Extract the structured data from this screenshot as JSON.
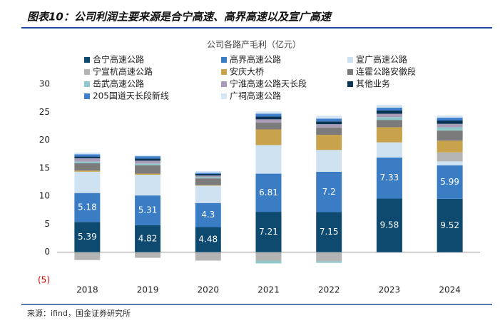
{
  "chart_data": {
    "type": "bar",
    "stacked": true,
    "title": "图表10：公司利润主要来源是合宁高速、高界高速以及宣广高速",
    "subtitle": "公司各路产毛利（亿元）",
    "source": "来源：ifind，国金证券研究所",
    "categories": [
      "2018",
      "2019",
      "2020",
      "2021",
      "2022",
      "2023",
      "2024"
    ],
    "series": [
      {
        "name": "合宁高速公路",
        "color": "#0e4a70",
        "values": [
          5.39,
          4.82,
          4.48,
          7.21,
          7.15,
          9.58,
          9.52
        ],
        "data_labels": true
      },
      {
        "name": "高界高速公路",
        "color": "#3a7dc4",
        "values": [
          5.18,
          5.31,
          4.3,
          6.81,
          7.2,
          7.33,
          5.99
        ],
        "data_labels": true
      },
      {
        "name": "宣广高速公路",
        "color": "#cfe2f2",
        "values": [
          3.8,
          3.7,
          3.1,
          5.1,
          3.9,
          2.7,
          0.7
        ]
      },
      {
        "name": "宁宣杭高速公路",
        "color": "#b4b4b4",
        "values": [
          -1.4,
          -1.0,
          -1.5,
          -1.5,
          -1.6,
          0,
          1.6
        ]
      },
      {
        "name": "安庆大桥",
        "color": "#c9a24c",
        "values": [
          0.2,
          0.2,
          0.1,
          2.8,
          2.7,
          2.7,
          2.1
        ]
      },
      {
        "name": "连霍公路安徽段",
        "color": "#7b7b7b",
        "values": [
          1.3,
          1.5,
          1.2,
          1.2,
          1.3,
          1.3,
          1.8
        ]
      },
      {
        "name": "岳武高速公路",
        "color": "#8fc7cb",
        "values": [
          0.3,
          0.3,
          0.2,
          -0.5,
          -0.3,
          0.5,
          0.6
        ]
      },
      {
        "name": "宁淮高速公路天长段",
        "color": "#a99cb7",
        "values": [
          0.6,
          0.5,
          0.3,
          0.6,
          0.6,
          0.6,
          0.6
        ]
      },
      {
        "name": "其他业务",
        "color": "#0a3455",
        "values": [
          0.3,
          0.4,
          0.3,
          0.5,
          0.5,
          0.6,
          0.6
        ]
      },
      {
        "name": "205国道天长段新线",
        "color": "#3f7fcc",
        "values": [
          0.4,
          0.4,
          0.2,
          0.5,
          0.5,
          0.5,
          0.5
        ]
      },
      {
        "name": "广祠高速公路",
        "color": "#d4e6f5",
        "values": [
          0.3,
          0.2,
          0.3,
          0.4,
          0.5,
          0.5,
          0.4
        ]
      }
    ],
    "ylim": [
      -5,
      30
    ],
    "yticks": [
      {
        "value": -5,
        "label": "(5)"
      },
      0,
      5,
      10,
      15,
      20,
      25,
      30
    ],
    "legend": "top"
  }
}
